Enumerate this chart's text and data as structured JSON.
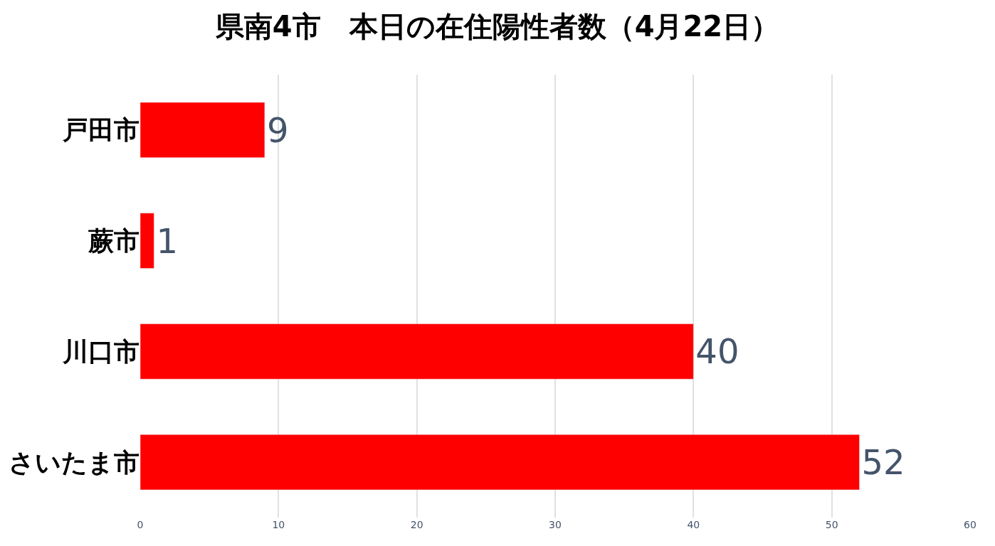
{
  "chart_data": {
    "type": "bar",
    "orientation": "horizontal",
    "title": "県南4市　本日の在住陽性者数（4月22日）",
    "categories": [
      "戸田市",
      "蕨市",
      "川口市",
      "さいたま市"
    ],
    "values": [
      9,
      1,
      40,
      52
    ],
    "color": "#ff0000",
    "xlim": [
      0,
      60
    ],
    "xticks": [
      0,
      10,
      20,
      30,
      40,
      50,
      60
    ],
    "grid": "x",
    "data_labels": true
  }
}
